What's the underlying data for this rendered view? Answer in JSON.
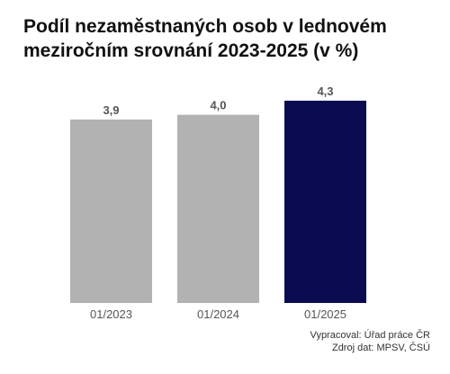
{
  "chart_data": {
    "type": "bar",
    "title": "Podíl nezaměstnaných osob v lednovém meziročním srovnání 2023-2025 (v %)",
    "xlabel": "",
    "ylabel": "",
    "categories": [
      "01/2023",
      "01/2024",
      "01/2025"
    ],
    "values": [
      3.9,
      4.0,
      4.3
    ],
    "value_labels": [
      "3,9",
      "4,0",
      "4,3"
    ],
    "ylim": [
      0,
      4.3
    ],
    "grid": false,
    "legend": "none",
    "colors": [
      "#b2b2b2",
      "#b2b2b2",
      "#0b0b52"
    ]
  },
  "source": {
    "prepared_by": "Vypracoval: Úřad práce ČR",
    "data_source": "Zdroj dat: MPSV, ČSÚ"
  }
}
